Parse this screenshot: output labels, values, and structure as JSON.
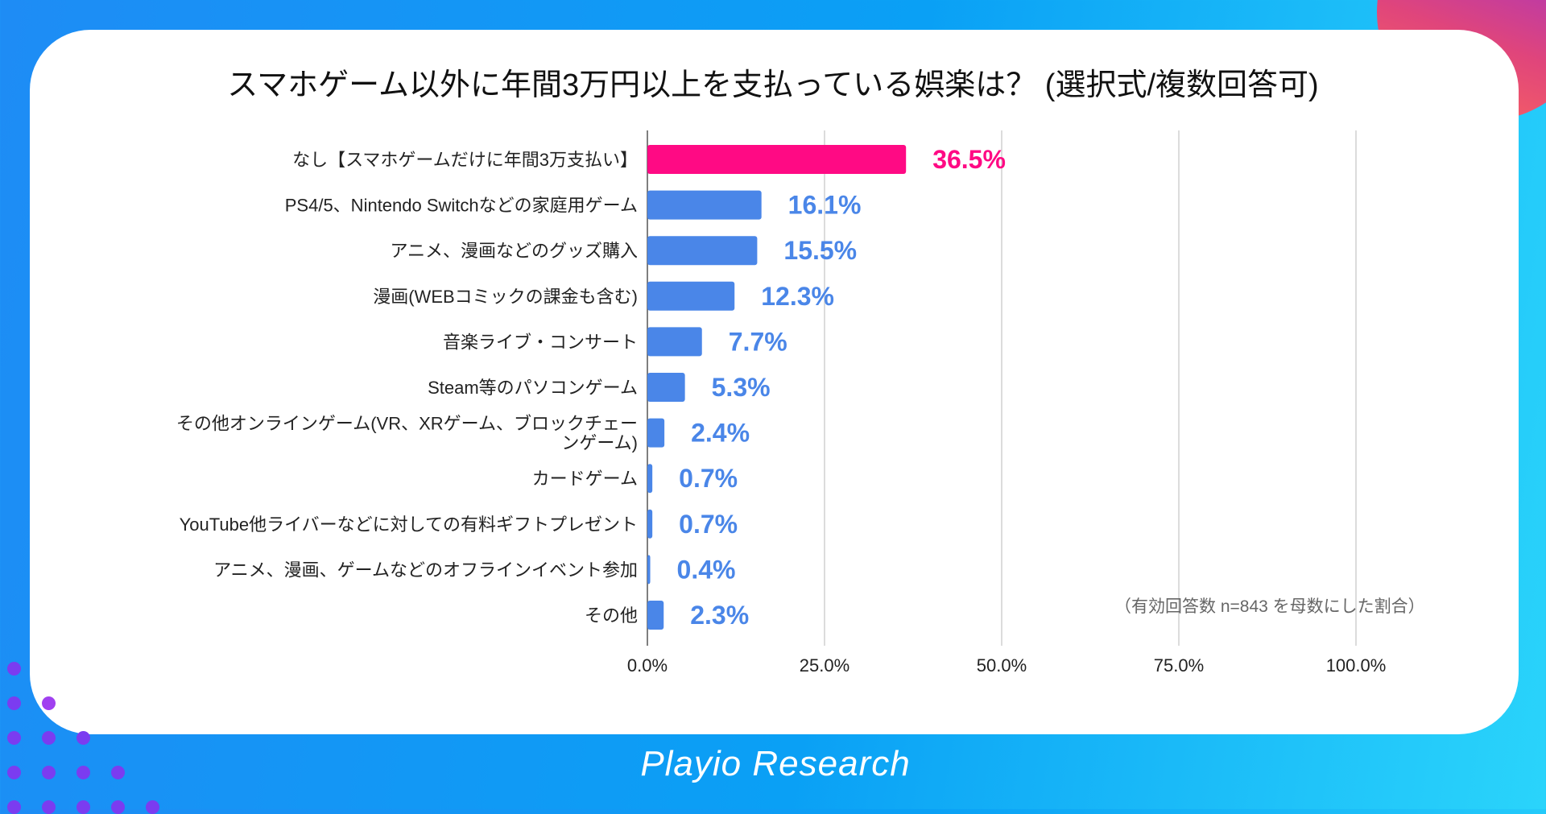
{
  "chart_data": {
    "type": "bar",
    "orientation": "horizontal",
    "title": "スマホゲーム以外に年間3万円以上を支払っている娯楽は？ (選択式/複数回答可)",
    "categories": [
      "なし【スマホゲームだけに年間3万支払い】",
      "PS4/5、Nintendo Switchなどの家庭用ゲーム",
      "アニメ、漫画などのグッズ購入",
      "漫画(WEBコミックの課金も含む)",
      "音楽ライブ・コンサート",
      "Steam等のパソコンゲーム",
      "その他オンラインゲーム(VR、XRゲーム、ブロックチェーンゲーム)",
      "カードゲーム",
      "YouTube他ライバーなどに対しての有料ギフトプレゼント",
      "アニメ、漫画、ゲームなどのオフラインイベント参加",
      "その他"
    ],
    "category_lines": [
      [
        "なし【スマホゲームだけに年間3万支払い】"
      ],
      [
        "PS4/5、Nintendo Switchなどの家庭用ゲーム"
      ],
      [
        "アニメ、漫画などのグッズ購入"
      ],
      [
        "漫画(WEBコミックの課金も含む)"
      ],
      [
        "音楽ライブ・コンサート"
      ],
      [
        "Steam等のパソコンゲーム"
      ],
      [
        "その他オンラインゲーム(VR、XRゲーム、ブロックチェー",
        "ンゲーム)"
      ],
      [
        "カードゲーム"
      ],
      [
        "YouTube他ライバーなどに対しての有料ギフトプレゼント"
      ],
      [
        "アニメ、漫画、ゲームなどのオフラインイベント参加"
      ],
      [
        "その他"
      ]
    ],
    "values": [
      36.5,
      16.1,
      15.5,
      12.3,
      7.7,
      5.3,
      2.4,
      0.7,
      0.7,
      0.4,
      2.3
    ],
    "value_labels": [
      "36.5%",
      "16.1%",
      "15.5%",
      "12.3%",
      "7.7%",
      "5.3%",
      "2.4%",
      "0.7%",
      "0.7%",
      "0.4%",
      "2.3%"
    ],
    "highlight_index": 0,
    "xlim": [
      0,
      100
    ],
    "xticks": [
      0,
      25,
      50,
      75,
      100
    ],
    "xtick_labels": [
      "0.0%",
      "25.0%",
      "50.0%",
      "75.0%",
      "100.0%"
    ],
    "grid": true,
    "xlabel": "",
    "ylabel": "",
    "note": "（有効回答数 n=843 を母数にした割合）"
  },
  "colors": {
    "highlight": "#FF0A84",
    "bar": "#4A86E8",
    "grid": "#d0d0d0"
  },
  "brand": "Playio Research"
}
